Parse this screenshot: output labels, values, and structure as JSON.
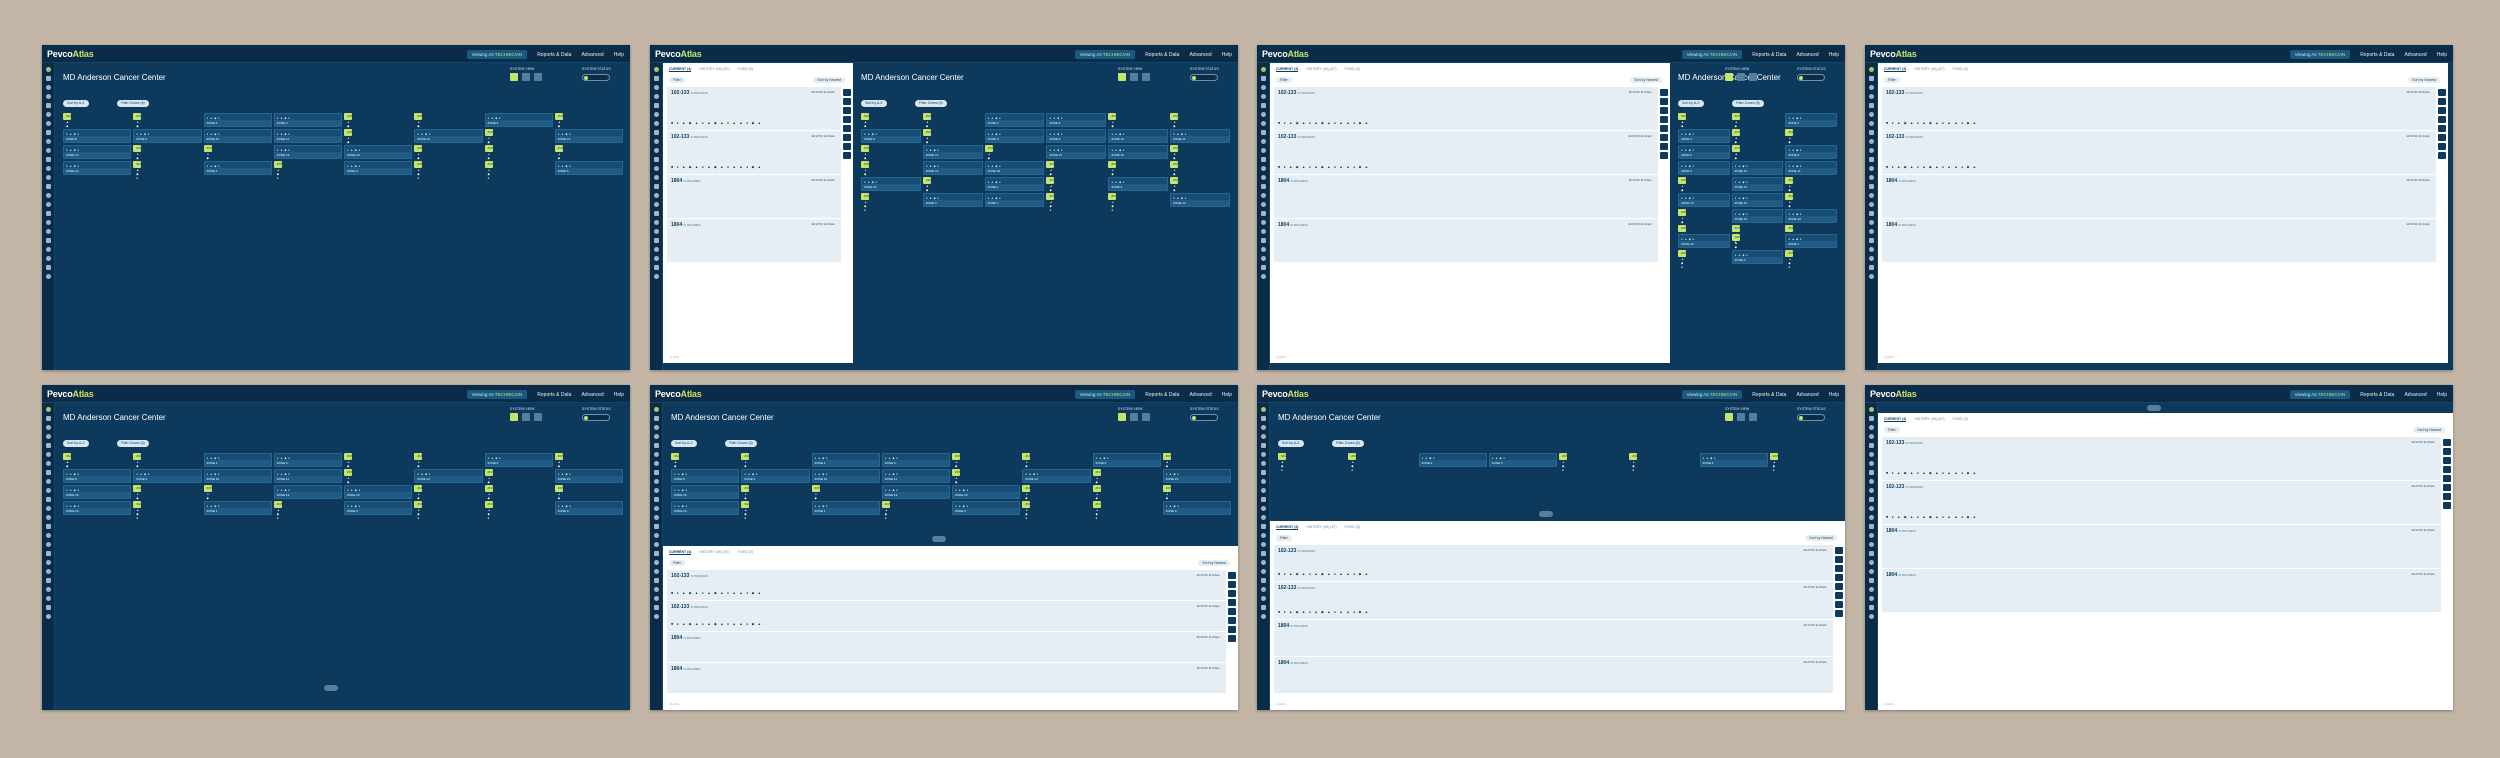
{
  "app": {
    "logo_main": "Pevco",
    "logo_accent": "Atlas",
    "viewing_label": "Viewing As",
    "viewing_value": "TECHNICIAN"
  },
  "nav": {
    "reports": "Reports & Data",
    "advanced": "Advanced",
    "help": "Help"
  },
  "page": {
    "title": "MD Anderson Cancer Center",
    "system_view_label": "SYSTEM VIEW",
    "system_status_label": "SYSTEM STATUS"
  },
  "controls": {
    "sort_label": "Sort by A-Z",
    "filter_zones": "Filter Zones (6)",
    "sort_by_newest": "Sort by Newest"
  },
  "zones": [
    "SMARTBOX",
    "ZONE 1",
    "ZONE 2",
    "ZONE 3",
    "ZONE 4",
    "ZONE 5",
    "ZONE 6",
    "ZONE 7",
    "ZONE 8",
    "ZONE 9",
    "ZONE 10",
    "ZONE 11",
    "ZONE 12",
    "ZONE 13",
    "ZONE 14",
    "ZONE 15",
    "ZONE 16",
    "ZONE 17",
    "ZONE 18",
    "ZONE 19",
    "ZONE 20",
    "ZONE 21",
    "ZONE 22",
    "ZONE 23",
    "ZONE 24"
  ],
  "tabs": [
    "CURRENT (4)",
    "HISTORY (4K) (67)",
    "FIXED (0)"
  ],
  "filter_label": "Filter",
  "carriers": [
    {
      "id": "102-133",
      "status": "IN PROGRESS",
      "time": "11/17/23 11:04pm"
    },
    {
      "id": "102-133",
      "status": "IN PROGRESS",
      "time": "11/17/23 11:04pm"
    },
    {
      "id": "1804",
      "status": "IN PROGRESS",
      "time": "11/17/23 11:04pm"
    },
    {
      "id": "1804",
      "status": "IN PROGRESS",
      "time": "11/17/23 11:04pm"
    }
  ],
  "colors": {
    "bg": "#0d3a5c",
    "accent": "#c6e36a",
    "page": "#c3b6a7"
  }
}
